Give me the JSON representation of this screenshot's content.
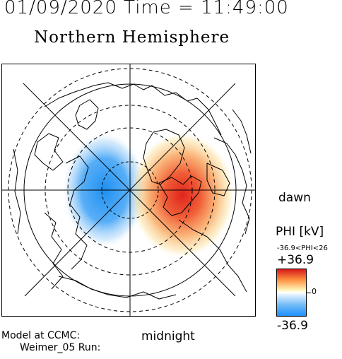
{
  "header": {
    "datetime": "01/09/2020 Time = 11:49:00",
    "title": "Northern Hemisphere"
  },
  "map": {
    "orientation_labels": {
      "dawn": "dawn",
      "midnight": "midnight"
    }
  },
  "legend": {
    "title": "PHI [kV]",
    "range_text": "-36.9<PHI<26",
    "max_label": "+36.9",
    "zero_label": "0",
    "min_label": "-36.9",
    "colors": {
      "positive": "#d7191c",
      "neutral": "#ffffff",
      "negative": "#1e90ff"
    }
  },
  "footer": {
    "model_line": "Model at CCMC:",
    "run_line": "Weimer_05 Run:"
  }
}
